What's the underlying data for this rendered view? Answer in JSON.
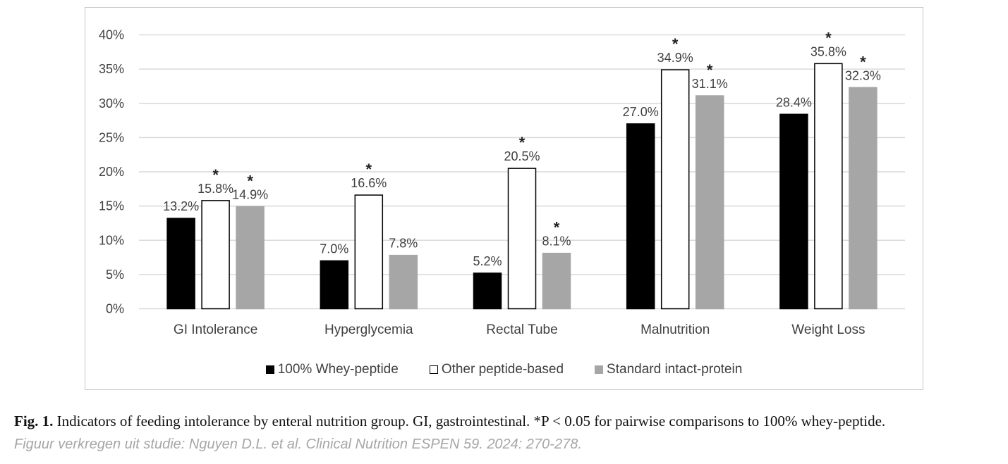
{
  "chart_data": {
    "type": "bar",
    "categories": [
      "GI Intolerance",
      "Hyperglycemia",
      "Rectal Tube",
      "Malnutrition",
      "Weight Loss"
    ],
    "series": [
      {
        "name": "100% Whey-peptide",
        "values": [
          13.2,
          7.0,
          5.2,
          27.0,
          28.4
        ],
        "labels": [
          "13.2%",
          "7.0%",
          "5.2%",
          "27.0%",
          "28.4%"
        ],
        "significant": [
          false,
          false,
          false,
          false,
          false
        ],
        "fill": "#000000",
        "stroke": "#000000"
      },
      {
        "name": "Other peptide-based",
        "values": [
          15.8,
          16.6,
          20.5,
          34.9,
          35.8
        ],
        "labels": [
          "15.8%",
          "16.6%",
          "20.5%",
          "34.9%",
          "35.8%"
        ],
        "significant": [
          true,
          true,
          true,
          true,
          true
        ],
        "fill": "#ffffff",
        "stroke": "#000000"
      },
      {
        "name": "Standard intact-protein",
        "values": [
          14.9,
          7.8,
          8.1,
          31.1,
          32.3
        ],
        "labels": [
          "14.9%",
          "7.8%",
          "8.1%",
          "31.1%",
          "32.3%"
        ],
        "significant": [
          true,
          false,
          true,
          true,
          true
        ],
        "fill": "#a6a6a6",
        "stroke": "#a6a6a6"
      }
    ],
    "significance_marker": "*",
    "ylim": [
      0,
      40
    ],
    "yticks": [
      "0%",
      "5%",
      "10%",
      "15%",
      "20%",
      "25%",
      "30%",
      "35%",
      "40%"
    ],
    "ytick_values": [
      0,
      5,
      10,
      15,
      20,
      25,
      30,
      35,
      40
    ],
    "grid": true,
    "legend_position": "bottom",
    "title": "",
    "xlabel": "",
    "ylabel": ""
  },
  "caption": {
    "label": "Fig. 1.",
    "text": "Indicators of feeding intolerance by enteral nutrition group. GI, gastrointestinal. *P < 0.05 for pairwise comparisons to 100% whey-peptide."
  },
  "source": "Figuur verkregen uit studie: Nguyen D.L. et al. Clinical Nutrition ESPEN 59. 2024: 270-278.",
  "colors": {
    "grid": "#d9d9d9",
    "text": "#404040"
  }
}
